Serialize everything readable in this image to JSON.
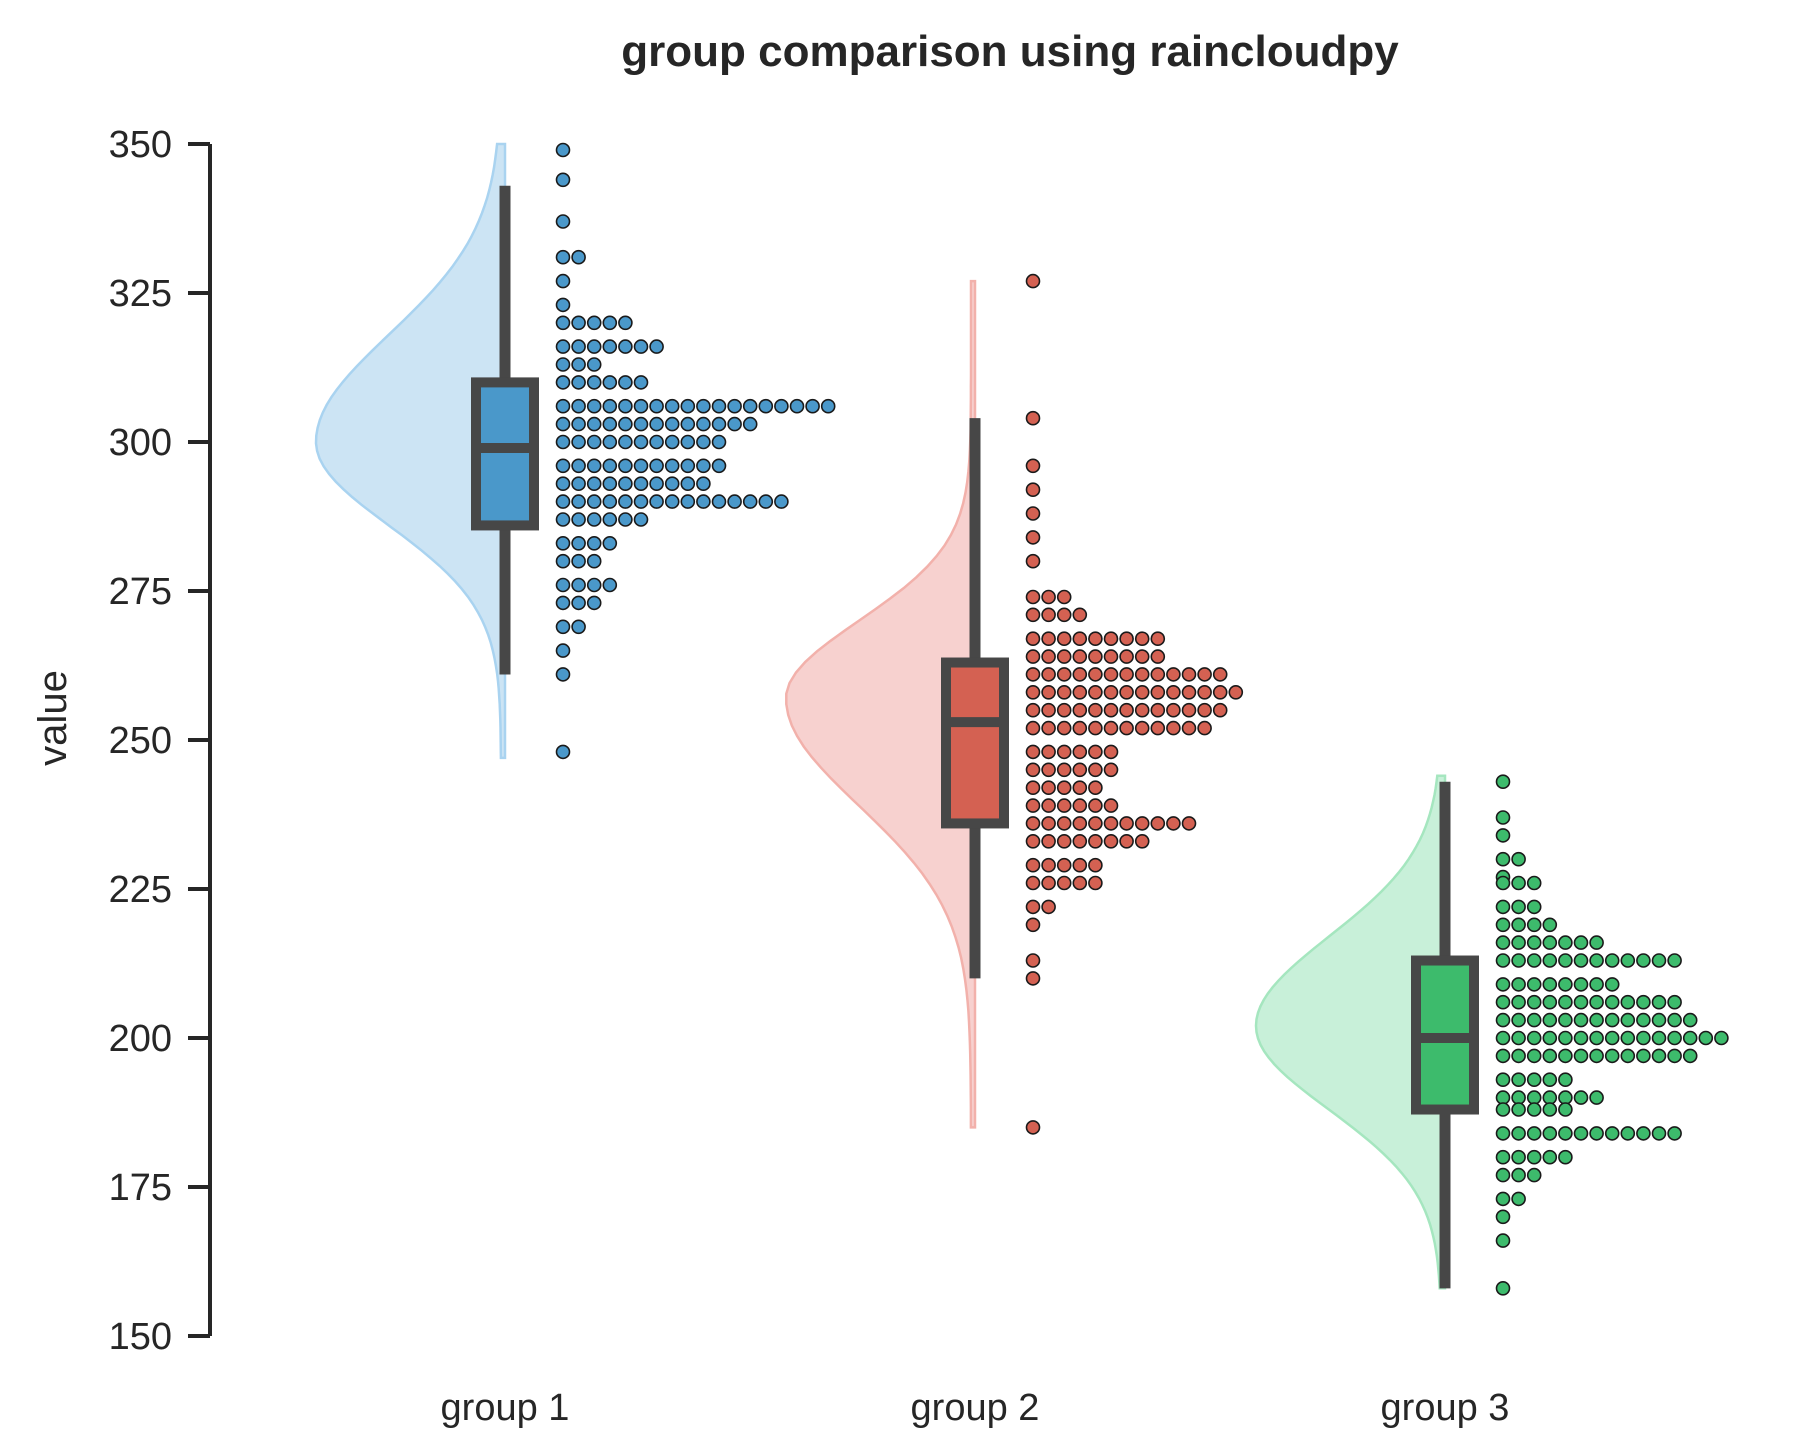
{
  "chart_data": {
    "type": "raincloud",
    "title": "group comparison using raincloudpy",
    "xlabel": "",
    "ylabel": "value",
    "ylim": [
      150,
      350
    ],
    "yticks": [
      150,
      175,
      200,
      225,
      250,
      275,
      300,
      325,
      350
    ],
    "categories": [
      "group 1",
      "group 2",
      "group 3"
    ],
    "grid": false,
    "legend": "none",
    "groups": [
      {
        "label": "group 1",
        "color": "#4a98ca",
        "violin_color": "#cce4f4",
        "violin_edge": "#a9d3f0",
        "box": {
          "whisker_low": 261,
          "q1": 286,
          "median": 299,
          "q3": 310,
          "whisker_high": 343
        },
        "kde": {
          "min": 247,
          "max": 350,
          "mode": 300,
          "sd_low": 14,
          "sd_high": 18
        },
        "points": [
          {
            "y": 349,
            "n": 1
          },
          {
            "y": 344,
            "n": 1
          },
          {
            "y": 337,
            "n": 1
          },
          {
            "y": 331,
            "n": 2
          },
          {
            "y": 327,
            "n": 1
          },
          {
            "y": 323,
            "n": 1
          },
          {
            "y": 320,
            "n": 5
          },
          {
            "y": 316,
            "n": 7
          },
          {
            "y": 313,
            "n": 3
          },
          {
            "y": 310,
            "n": 6
          },
          {
            "y": 306,
            "n": 18
          },
          {
            "y": 303,
            "n": 13
          },
          {
            "y": 300,
            "n": 11
          },
          {
            "y": 296,
            "n": 11
          },
          {
            "y": 293,
            "n": 10
          },
          {
            "y": 290,
            "n": 15
          },
          {
            "y": 287,
            "n": 6
          },
          {
            "y": 283,
            "n": 4
          },
          {
            "y": 280,
            "n": 3
          },
          {
            "y": 276,
            "n": 4
          },
          {
            "y": 273,
            "n": 3
          },
          {
            "y": 269,
            "n": 2
          },
          {
            "y": 265,
            "n": 1
          },
          {
            "y": 261,
            "n": 1
          },
          {
            "y": 248,
            "n": 1
          }
        ]
      },
      {
        "label": "group 2",
        "color": "#d46152",
        "violin_color": "#f7d1cf",
        "violin_edge": "#f2b1ab",
        "box": {
          "whisker_low": 210,
          "q1": 236,
          "median": 253,
          "q3": 263,
          "whisker_high": 304
        },
        "kde": {
          "min": 185,
          "max": 327,
          "mode": 257,
          "sd_low": 18,
          "sd_high": 13
        },
        "points": [
          {
            "y": 327,
            "n": 1
          },
          {
            "y": 304,
            "n": 1
          },
          {
            "y": 296,
            "n": 1
          },
          {
            "y": 292,
            "n": 1
          },
          {
            "y": 288,
            "n": 1
          },
          {
            "y": 284,
            "n": 1
          },
          {
            "y": 280,
            "n": 1
          },
          {
            "y": 274,
            "n": 3
          },
          {
            "y": 271,
            "n": 4
          },
          {
            "y": 267,
            "n": 9
          },
          {
            "y": 264,
            "n": 9
          },
          {
            "y": 261,
            "n": 13
          },
          {
            "y": 258,
            "n": 14
          },
          {
            "y": 255,
            "n": 13
          },
          {
            "y": 252,
            "n": 12
          },
          {
            "y": 248,
            "n": 6
          },
          {
            "y": 245,
            "n": 6
          },
          {
            "y": 242,
            "n": 5
          },
          {
            "y": 239,
            "n": 6
          },
          {
            "y": 236,
            "n": 11
          },
          {
            "y": 233,
            "n": 8
          },
          {
            "y": 229,
            "n": 5
          },
          {
            "y": 226,
            "n": 5
          },
          {
            "y": 222,
            "n": 2
          },
          {
            "y": 219,
            "n": 1
          },
          {
            "y": 213,
            "n": 1
          },
          {
            "y": 210,
            "n": 1
          },
          {
            "y": 185,
            "n": 1
          }
        ]
      },
      {
        "label": "group 3",
        "color": "#3dbb6c",
        "violin_color": "#c8f0d9",
        "violin_edge": "#a5e6bf",
        "box": {
          "whisker_low": 158,
          "q1": 188,
          "median": 200,
          "q3": 213,
          "whisker_high": 243
        },
        "kde": {
          "min": 158,
          "max": 244,
          "mode": 202,
          "sd_low": 14,
          "sd_high": 15
        },
        "points": [
          {
            "y": 243,
            "n": 1
          },
          {
            "y": 237,
            "n": 1
          },
          {
            "y": 234,
            "n": 1
          },
          {
            "y": 230,
            "n": 2
          },
          {
            "y": 227,
            "n": 1
          },
          {
            "y": 226,
            "n": 3
          },
          {
            "y": 222,
            "n": 3
          },
          {
            "y": 219,
            "n": 4
          },
          {
            "y": 216,
            "n": 7
          },
          {
            "y": 213,
            "n": 12
          },
          {
            "y": 209,
            "n": 8
          },
          {
            "y": 206,
            "n": 12
          },
          {
            "y": 203,
            "n": 13
          },
          {
            "y": 200,
            "n": 15
          },
          {
            "y": 197,
            "n": 13
          },
          {
            "y": 193,
            "n": 5
          },
          {
            "y": 190,
            "n": 7
          },
          {
            "y": 188,
            "n": 5
          },
          {
            "y": 184,
            "n": 12
          },
          {
            "y": 180,
            "n": 5
          },
          {
            "y": 177,
            "n": 3
          },
          {
            "y": 173,
            "n": 2
          },
          {
            "y": 170,
            "n": 1
          },
          {
            "y": 166,
            "n": 1
          },
          {
            "y": 158,
            "n": 1
          }
        ]
      }
    ]
  }
}
